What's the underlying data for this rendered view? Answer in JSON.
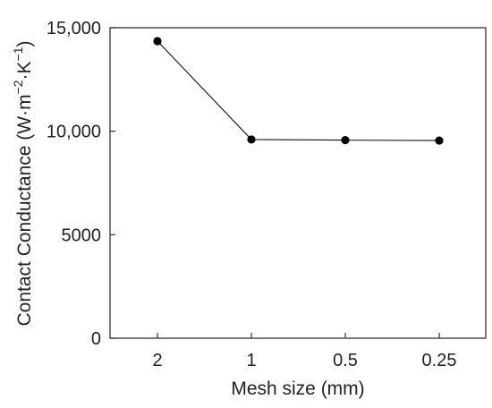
{
  "chart_data": {
    "type": "line",
    "title": "",
    "xlabel": "Mesh size (mm)",
    "ylabel": {
      "main": "Contact Conductance (W·m",
      "exp1": "−2",
      "mid": "·K",
      "exp2": "−1",
      "close": ")"
    },
    "categories": [
      "2",
      "1",
      "0.5",
      "0.25"
    ],
    "series": [
      {
        "values": [
          14350,
          9600,
          9570,
          9550
        ]
      }
    ],
    "ylim": [
      0,
      15000
    ],
    "yticks": [
      0,
      5000,
      10000,
      15000
    ],
    "ytick_labels": [
      "0",
      "5000",
      "10,000",
      "15,000"
    ],
    "grid": false,
    "line_color": "#111111",
    "marker_color": "#000000"
  }
}
